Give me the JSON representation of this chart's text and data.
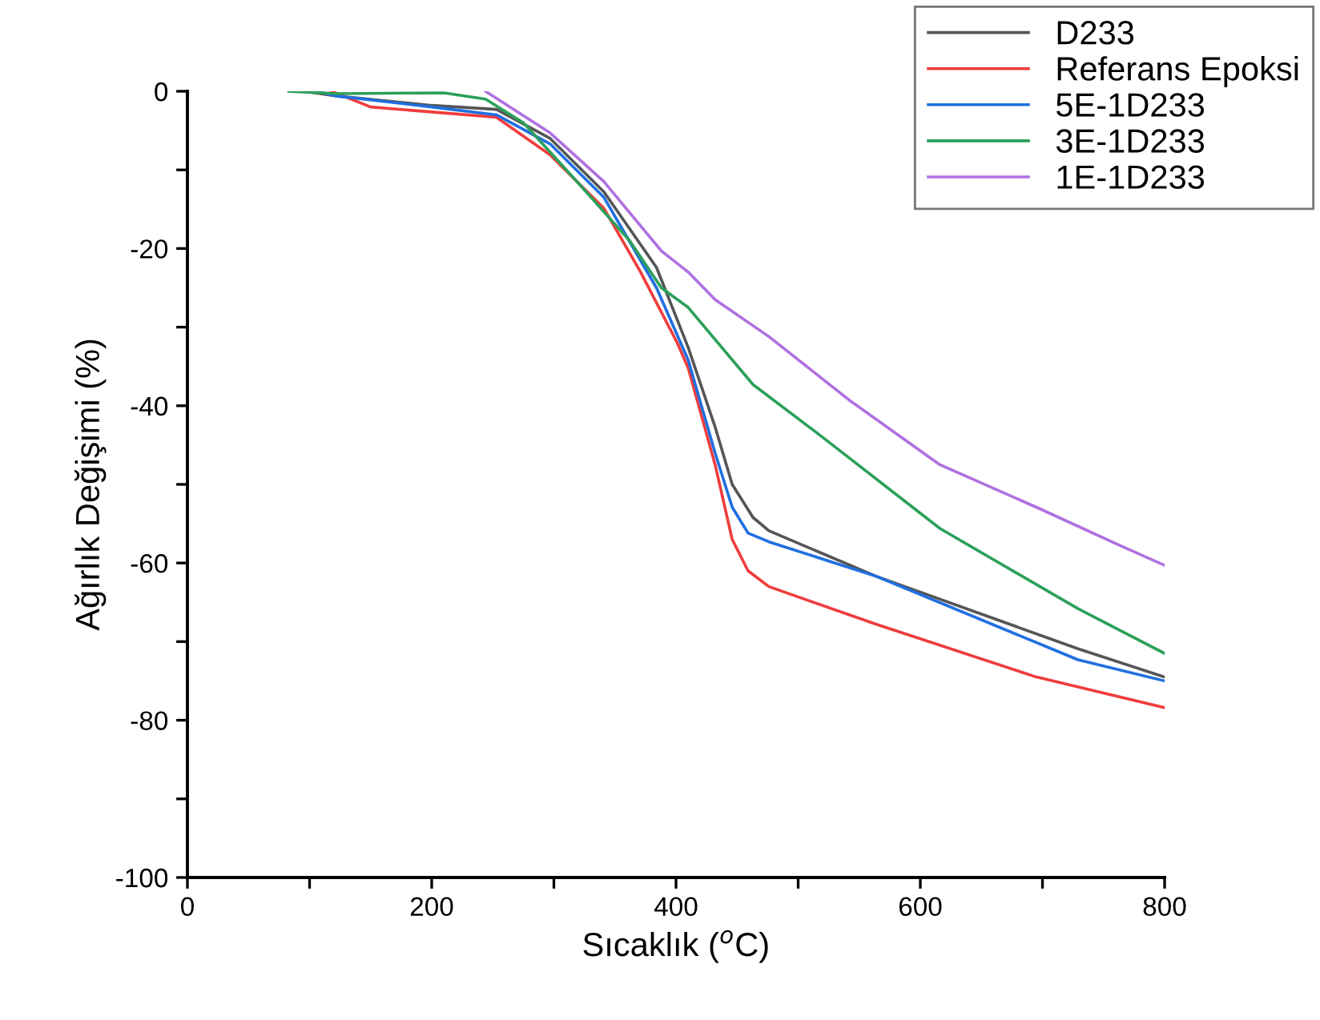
{
  "chart_data": {
    "type": "line",
    "xlabel": "Sıcaklık ($^{o}$C)",
    "ylabel": "Ağırlık Değişimi (%)",
    "xlim": [
      0,
      800
    ],
    "ylim": [
      -100,
      0
    ],
    "xticks": [
      0,
      {
        "value": 100,
        "label": null
      },
      200,
      {
        "value": 300,
        "label": null
      },
      400,
      {
        "value": 500,
        "label": null
      },
      600,
      {
        "value": 700,
        "label": null
      },
      800
    ],
    "yticks": [
      -100,
      {
        "value": -90,
        "label": null
      },
      -80,
      {
        "value": -70,
        "label": null
      },
      -60,
      {
        "value": -50,
        "label": null
      },
      -40,
      {
        "value": -30,
        "label": null
      },
      -20,
      {
        "value": -10,
        "label": null
      },
      0
    ],
    "grid": false,
    "legend": "top right",
    "line_style": "solid",
    "marker": "none",
    "series": [
      {
        "name": "D233",
        "color": "#555555",
        "x": [
          96,
          122,
          200,
          253,
          297,
          341,
          384,
          410,
          432,
          446,
          463,
          476,
          564,
          729,
          800
        ],
        "values": [
          0,
          -0.6,
          -1.8,
          -2.3,
          -6,
          -12.8,
          -22.4,
          -32.6,
          -42.7,
          -50,
          -54.2,
          -55.9,
          -61.7,
          -70.9,
          -74.5
        ]
      },
      {
        "name": "Referans Epoksi",
        "color": "#f03c3c",
        "x": [
          118,
          150,
          253,
          297,
          341,
          371,
          401,
          410,
          432,
          446,
          459,
          476,
          564,
          695,
          800
        ],
        "values": [
          0,
          -2,
          -3.3,
          -8.1,
          -14.9,
          -23,
          -32,
          -35.2,
          -47.5,
          -57,
          -61,
          -63,
          -67.8,
          -74.5,
          -78.4
        ]
      },
      {
        "name": "5E-1D233",
        "color": "#1f6fe0",
        "x": [
          105,
          122,
          200,
          253,
          297,
          341,
          384,
          410,
          432,
          446,
          459,
          476,
          564,
          729,
          800
        ],
        "values": [
          0,
          -0.6,
          -2,
          -3,
          -6.7,
          -13.5,
          -25,
          -34.2,
          -46,
          -52.9,
          -56.2,
          -57.3,
          -61.7,
          -72.3,
          -75
        ]
      },
      {
        "name": "3E-1D233",
        "color": "#2ca05a",
        "x": [
          83,
          122,
          210,
          244,
          275,
          319,
          362,
          388,
          410,
          463,
          520,
          616,
          729,
          800
        ],
        "values": [
          0,
          -0.3,
          -0.2,
          -1,
          -4,
          -11.5,
          -19,
          -25,
          -27.5,
          -37.3,
          -44,
          -55.6,
          -65.8,
          -71.5
        ]
      },
      {
        "name": "1E-1D233",
        "color": "#b070e0",
        "x": [
          244,
          297,
          341,
          388,
          410,
          432,
          476,
          542,
          616,
          695,
          761,
          800
        ],
        "values": [
          0,
          -5.3,
          -11.5,
          -20.3,
          -23,
          -26.5,
          -31.2,
          -39.3,
          -47.5,
          -52.9,
          -57.6,
          -60.3
        ]
      }
    ]
  }
}
